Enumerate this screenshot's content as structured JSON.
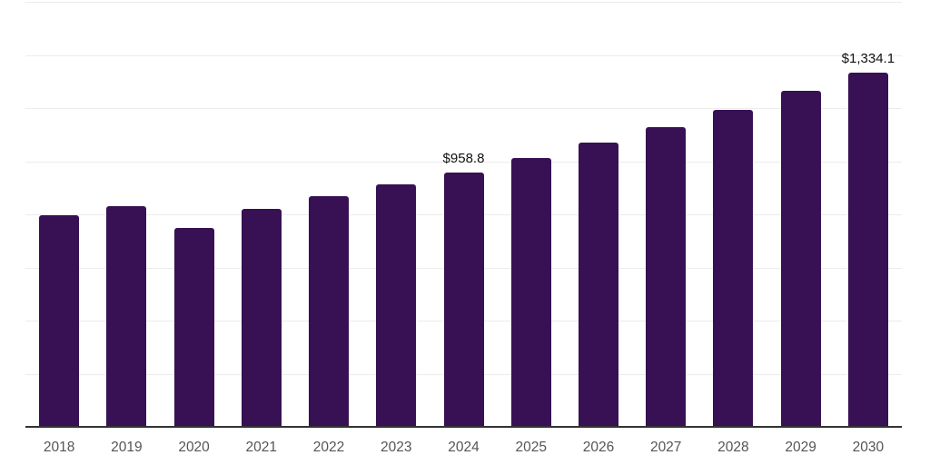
{
  "chart_data": {
    "type": "bar",
    "title": "",
    "xlabel": "",
    "ylabel": "",
    "categories": [
      "2018",
      "2019",
      "2020",
      "2021",
      "2022",
      "2023",
      "2024",
      "2025",
      "2026",
      "2027",
      "2028",
      "2029",
      "2030"
    ],
    "values": [
      795,
      830,
      750,
      820,
      868,
      912,
      958.8,
      1012,
      1071,
      1128,
      1193,
      1265,
      1334.1
    ],
    "data_labels": {
      "2024": "$958.8",
      "2030": "$1,334.1"
    },
    "ylim": [
      0,
      1600
    ],
    "gridline_step": 200,
    "grid": "horizontal-only",
    "legend": "none",
    "y_axis_tick_labels": "none",
    "colors": {
      "bar": "#371153",
      "gridline": "#ececec",
      "axis": "#333333",
      "tick_label": "#555555",
      "data_label": "#111111",
      "background": "#ffffff"
    }
  }
}
